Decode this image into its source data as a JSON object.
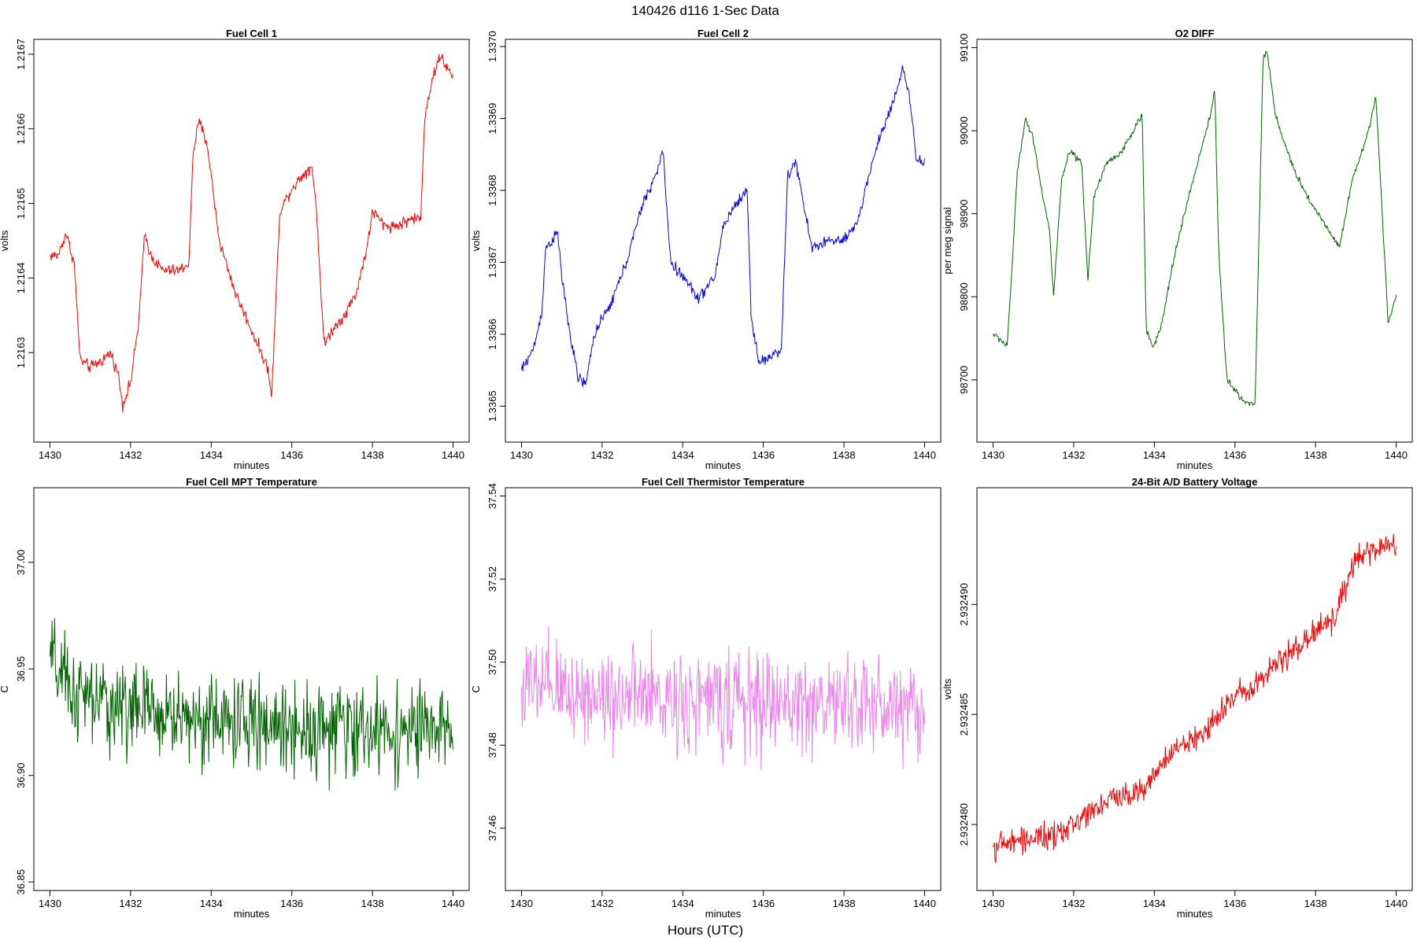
{
  "figure": {
    "title": "140426   d116   1-Sec Data",
    "xlabel": "Hours (UTC)"
  },
  "chart_data": [
    {
      "type": "line",
      "title": "Fuel Cell 1",
      "xlabel": "minutes",
      "ylabel": "volts",
      "color": "#ff0000",
      "xlim": [
        1429.6,
        1440.4
      ],
      "ylim": [
        1.21618,
        1.21672
      ],
      "xticks": [
        1430,
        1432,
        1434,
        1436,
        1438,
        1440
      ],
      "yticks": [
        1.2163,
        1.2164,
        1.2165,
        1.2166,
        1.2167
      ],
      "ytick_labels": [
        "1.2163",
        "1.2164",
        "1.2165",
        "1.2166",
        "1.2167"
      ],
      "noise": 1.2e-05,
      "x": [
        1430.0,
        1430.2,
        1430.4,
        1430.6,
        1430.75,
        1431.0,
        1431.3,
        1431.5,
        1431.7,
        1431.8,
        1432.0,
        1432.2,
        1432.35,
        1432.5,
        1432.8,
        1433.2,
        1433.45,
        1433.55,
        1433.7,
        1433.9,
        1434.2,
        1434.6,
        1435.0,
        1435.4,
        1435.5,
        1435.7,
        1436.0,
        1436.3,
        1436.5,
        1436.6,
        1436.8,
        1437.0,
        1437.3,
        1437.6,
        1437.9,
        1438.0,
        1438.3,
        1438.6,
        1439.0,
        1439.2,
        1439.3,
        1439.5,
        1439.7,
        1439.85,
        1440.0
      ],
      "y": [
        1.21643,
        1.21643,
        1.21646,
        1.21642,
        1.21629,
        1.21628,
        1.21629,
        1.2163,
        1.21627,
        1.21623,
        1.21626,
        1.21634,
        1.21646,
        1.21643,
        1.21641,
        1.21641,
        1.21642,
        1.21657,
        1.21661,
        1.21658,
        1.21645,
        1.21638,
        1.21633,
        1.21628,
        1.21624,
        1.21649,
        1.21652,
        1.21654,
        1.21655,
        1.2165,
        1.21631,
        1.21633,
        1.21635,
        1.21638,
        1.21645,
        1.21649,
        1.21647,
        1.21647,
        1.21648,
        1.21648,
        1.21662,
        1.21667,
        1.2167,
        1.21668,
        1.21667
      ]
    },
    {
      "type": "line",
      "title": "Fuel Cell 2",
      "xlabel": "minutes",
      "ylabel": "volts",
      "color": "#0000ff",
      "xlim": [
        1429.6,
        1440.4
      ],
      "ylim": [
        1.33645,
        1.33701
      ],
      "xticks": [
        1430,
        1432,
        1434,
        1436,
        1438,
        1440
      ],
      "yticks": [
        1.3365,
        1.3366,
        1.3367,
        1.3368,
        1.3369,
        1.337
      ],
      "ytick_labels": [
        "1.3365",
        "1.3366",
        "1.3367",
        "1.3368",
        "1.3369",
        "1.3370"
      ],
      "noise": 1.2e-05,
      "x": [
        1430.0,
        1430.3,
        1430.5,
        1430.6,
        1430.9,
        1431.0,
        1431.2,
        1431.4,
        1431.6,
        1431.8,
        1432.2,
        1432.6,
        1433.0,
        1433.4,
        1433.5,
        1433.7,
        1434.0,
        1434.4,
        1434.8,
        1435.0,
        1435.3,
        1435.6,
        1435.7,
        1435.9,
        1436.2,
        1436.45,
        1436.6,
        1436.8,
        1437.2,
        1437.6,
        1438.0,
        1438.3,
        1438.8,
        1439.2,
        1439.45,
        1439.6,
        1439.8,
        1440.0
      ],
      "y": [
        1.33655,
        1.33658,
        1.33663,
        1.33672,
        1.33674,
        1.33668,
        1.3366,
        1.33654,
        1.33653,
        1.3366,
        1.33664,
        1.3367,
        1.33678,
        1.33683,
        1.33686,
        1.3367,
        1.33668,
        1.33665,
        1.33668,
        1.33675,
        1.33678,
        1.3368,
        1.33662,
        1.33656,
        1.33657,
        1.33658,
        1.33682,
        1.33684,
        1.33672,
        1.33673,
        1.33673,
        1.33675,
        1.33686,
        1.33692,
        1.33697,
        1.33694,
        1.33684,
        1.33684
      ]
    },
    {
      "type": "line",
      "title": "O2 DIFF",
      "xlabel": "minutes",
      "ylabel": "per meg signal",
      "color": "#006400",
      "xlim": [
        1429.6,
        1440.4
      ],
      "ylim": [
        98625,
        99110
      ],
      "xticks": [
        1430,
        1432,
        1434,
        1436,
        1438,
        1440
      ],
      "yticks": [
        98700,
        98800,
        98900,
        99000,
        99100
      ],
      "ytick_labels": [
        "98700",
        "98800",
        "98900",
        "99000",
        "99100"
      ],
      "noise": 6,
      "x": [
        1430.0,
        1430.2,
        1430.35,
        1430.5,
        1430.6,
        1430.8,
        1431.0,
        1431.2,
        1431.4,
        1431.5,
        1431.7,
        1431.9,
        1432.2,
        1432.35,
        1432.5,
        1432.8,
        1433.2,
        1433.6,
        1433.7,
        1433.8,
        1434.0,
        1434.2,
        1434.5,
        1434.8,
        1435.2,
        1435.4,
        1435.5,
        1435.6,
        1435.8,
        1436.2,
        1436.5,
        1436.7,
        1436.8,
        1437.0,
        1437.4,
        1437.8,
        1438.2,
        1438.6,
        1438.9,
        1439.2,
        1439.5,
        1439.6,
        1439.8,
        1440.0
      ],
      "y": [
        98755,
        98748,
        98740,
        98860,
        98950,
        99015,
        98990,
        98930,
        98880,
        98800,
        98940,
        98975,
        98960,
        98820,
        98920,
        98960,
        98975,
        99010,
        99020,
        98760,
        98740,
        98770,
        98850,
        98910,
        98985,
        99020,
        99050,
        98850,
        98700,
        98675,
        98670,
        99090,
        99095,
        99020,
        98960,
        98920,
        98890,
        98860,
        98940,
        98980,
        99040,
        98950,
        98770,
        98800
      ]
    },
    {
      "type": "line",
      "title": "Fuel Cell MPT Temperature",
      "xlabel": "minutes",
      "ylabel": "C",
      "color": "#006400",
      "xlim": [
        1429.6,
        1440.4
      ],
      "ylim": [
        36.846,
        37.035
      ],
      "xticks": [
        1430,
        1432,
        1434,
        1436,
        1438,
        1440
      ],
      "yticks": [
        36.85,
        36.9,
        36.95,
        37.0
      ],
      "ytick_labels": [
        "36.85",
        "36.90",
        "36.95",
        "37.00"
      ],
      "noise": 0.032,
      "x": [
        1430.0,
        1430.3,
        1430.6,
        1431.0,
        1431.5,
        1432.0,
        1432.5,
        1433.0,
        1434.0,
        1435.0,
        1436.0,
        1437.0,
        1438.0,
        1439.0,
        1440.0
      ],
      "y": [
        36.955,
        36.945,
        36.938,
        36.935,
        36.933,
        36.932,
        36.93,
        36.928,
        36.926,
        36.924,
        36.923,
        36.922,
        36.921,
        36.921,
        36.92
      ]
    },
    {
      "type": "line",
      "title": "Fuel Cell Thermistor Temperature",
      "xlabel": "minutes",
      "ylabel": "C",
      "color": "#ee82ee",
      "xlim": [
        1429.6,
        1440.4
      ],
      "ylim": [
        37.445,
        37.542
      ],
      "xticks": [
        1430,
        1432,
        1434,
        1436,
        1438,
        1440
      ],
      "yticks": [
        37.46,
        37.48,
        37.5,
        37.52,
        37.54
      ],
      "ytick_labels": [
        "37.46",
        "37.48",
        "37.50",
        "37.52",
        "37.54"
      ],
      "noise": 0.018,
      "x": [
        1430.0,
        1432.0,
        1434.0,
        1436.0,
        1438.0,
        1440.0
      ],
      "y": [
        37.494,
        37.492,
        37.491,
        37.49,
        37.49,
        37.489
      ]
    },
    {
      "type": "line",
      "title": "24-Bit A/D Battery Voltage",
      "xlabel": "minutes",
      "ylabel": "volts",
      "color": "#ff0000",
      "xlim": [
        1429.6,
        1440.4
      ],
      "ylim": [
        2.932477,
        2.9324953
      ],
      "xticks": [
        1430,
        1432,
        1434,
        1436,
        1438,
        1440
      ],
      "yticks": [
        2.93248,
        2.932485,
        2.93249
      ],
      "ytick_labels": [
        "2.932480",
        "2.932485",
        "2.932490"
      ],
      "noise": 9e-07,
      "x": [
        1430.0,
        1430.5,
        1431.0,
        1431.5,
        1432.0,
        1432.5,
        1433.0,
        1433.5,
        1434.0,
        1434.5,
        1435.0,
        1435.5,
        1436.0,
        1436.5,
        1437.0,
        1437.5,
        1438.0,
        1438.5,
        1439.0,
        1439.5,
        1440.0
      ],
      "y": [
        2.932479,
        2.9324792,
        2.9324794,
        2.9324794,
        2.93248,
        2.9324808,
        2.9324812,
        2.9324814,
        2.9324822,
        2.9324834,
        2.9324838,
        2.9324848,
        2.9324858,
        2.9324865,
        2.9324872,
        2.932488,
        2.9324888,
        2.9324895,
        2.932492,
        2.9324925,
        2.9324928
      ]
    }
  ]
}
